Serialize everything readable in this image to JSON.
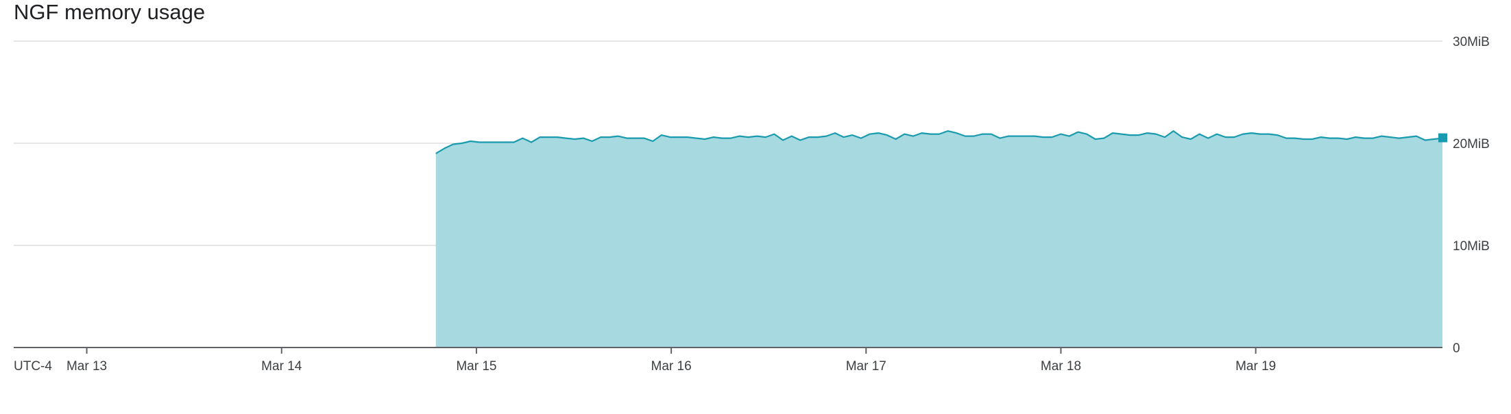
{
  "chart_data": {
    "type": "area",
    "title": "NGF memory usage",
    "timezone": "UTC-4",
    "x_tick_labels": [
      "Mar 13",
      "Mar 14",
      "Mar 15",
      "Mar 16",
      "Mar 17",
      "Mar 18",
      "Mar 19"
    ],
    "y_tick_labels": [
      "0",
      "10MiB",
      "20MiB",
      "30MiB"
    ],
    "y_ticks": [
      0,
      10,
      20,
      30
    ],
    "ylim": [
      0,
      30
    ],
    "xlim": [
      "2024-03-12T15:00",
      "2024-03-19T23:00"
    ],
    "y_unit": "MiB",
    "grid": true,
    "series_color": "#1a9aae",
    "fill_color": "#a6dae0",
    "series": [
      {
        "x_start": "2024-03-14T19:00",
        "x_end": "2024-03-19T23:00",
        "values": [
          19.0,
          19.5,
          19.9,
          20.0,
          20.2,
          20.1,
          20.1,
          20.1,
          20.1,
          20.1,
          20.5,
          20.1,
          20.6,
          20.6,
          20.6,
          20.5,
          20.4,
          20.5,
          20.2,
          20.6,
          20.6,
          20.7,
          20.5,
          20.5,
          20.5,
          20.2,
          20.8,
          20.6,
          20.6,
          20.6,
          20.5,
          20.4,
          20.6,
          20.5,
          20.5,
          20.7,
          20.6,
          20.7,
          20.6,
          20.9,
          20.3,
          20.7,
          20.3,
          20.6,
          20.6,
          20.7,
          21.0,
          20.6,
          20.8,
          20.5,
          20.9,
          21.0,
          20.8,
          20.4,
          20.9,
          20.7,
          21.0,
          20.9,
          20.9,
          21.2,
          21.0,
          20.7,
          20.7,
          20.9,
          20.9,
          20.5,
          20.7,
          20.7,
          20.7,
          20.7,
          20.6,
          20.6,
          20.9,
          20.7,
          21.1,
          20.9,
          20.4,
          20.5,
          21.0,
          20.9,
          20.8,
          20.8,
          21.0,
          20.9,
          20.6,
          21.2,
          20.6,
          20.4,
          20.9,
          20.5,
          20.9,
          20.6,
          20.6,
          20.9,
          21.0,
          20.9,
          20.9,
          20.8,
          20.5,
          20.5,
          20.4,
          20.4,
          20.6,
          20.5,
          20.5,
          20.4,
          20.6,
          20.5,
          20.5,
          20.7,
          20.6,
          20.5,
          20.6,
          20.7,
          20.3,
          20.4,
          20.5
        ]
      }
    ]
  }
}
